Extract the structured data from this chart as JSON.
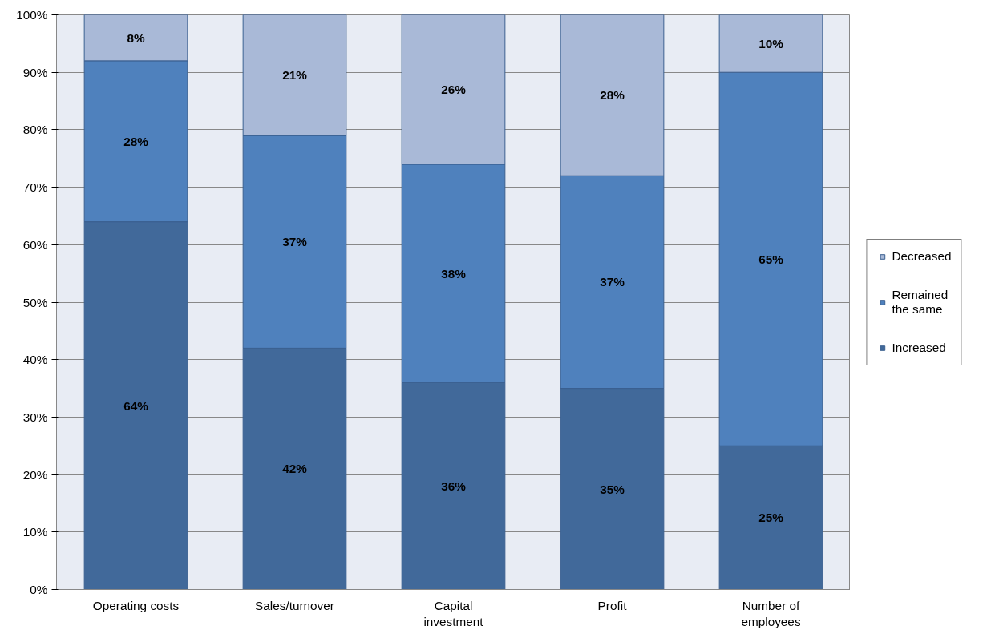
{
  "chart_data": {
    "type": "bar",
    "stacked": true,
    "categories": [
      "Operating costs",
      "Sales/turnover",
      "Capital investment",
      "Profit",
      "Number of employees"
    ],
    "series": [
      {
        "name": "Increased",
        "color": "#41699a",
        "values": [
          64,
          42,
          36,
          35,
          25
        ],
        "value_labels": [
          "64%",
          "42%",
          "36%",
          "35%",
          "25%"
        ]
      },
      {
        "name": "Remained the same",
        "color": "#4f81bd",
        "values": [
          28,
          37,
          38,
          37,
          65
        ],
        "value_labels": [
          "28%",
          "37%",
          "38%",
          "37%",
          "65%"
        ]
      },
      {
        "name": "Decreased",
        "color": "#a9b9d7",
        "values": [
          8,
          21,
          26,
          28,
          10
        ],
        "value_labels": [
          "8%",
          "21%",
          "26%",
          "28%",
          "10%"
        ]
      }
    ],
    "ylim": [
      0,
      100
    ],
    "yticks": [
      {
        "value": 0,
        "label": "0%"
      },
      {
        "value": 10,
        "label": "10%"
      },
      {
        "value": 20,
        "label": "20%"
      },
      {
        "value": 30,
        "label": "30%"
      },
      {
        "value": 40,
        "label": "40%"
      },
      {
        "value": 50,
        "label": "50%"
      },
      {
        "value": 60,
        "label": "60%"
      },
      {
        "value": 70,
        "label": "70%"
      },
      {
        "value": 80,
        "label": "80%"
      },
      {
        "value": 90,
        "label": "90%"
      },
      {
        "value": 100,
        "label": "100%"
      }
    ],
    "grid": "y",
    "legend": "right"
  }
}
